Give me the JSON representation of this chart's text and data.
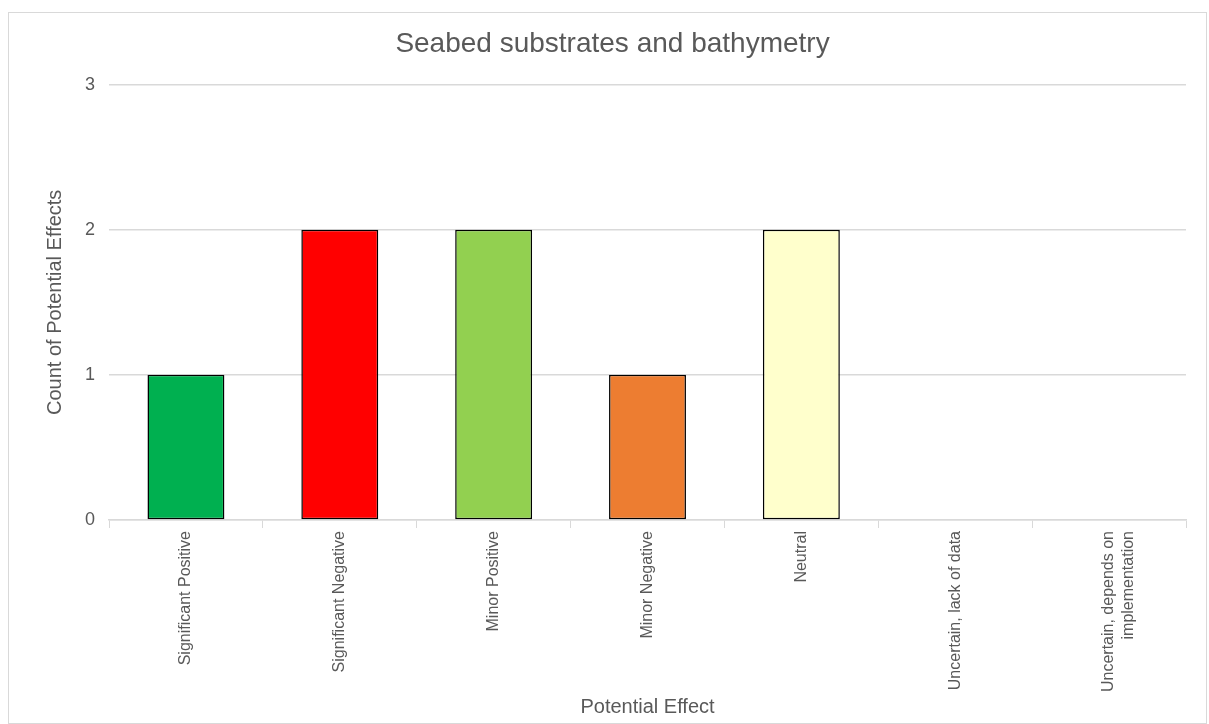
{
  "chart_data": {
    "type": "bar",
    "title": "Seabed substrates and bathymetry",
    "xlabel": "Potential Effect",
    "ylabel": "Count of Potential Effects",
    "categories": [
      "Significant Positive",
      "Significant Negative",
      "Minor Positive",
      "Minor Negative",
      "Neutral",
      "Uncertain, lack of data",
      "Uncertain, depends on implementation"
    ],
    "values": [
      1,
      2,
      2,
      1,
      2,
      0,
      0
    ],
    "colors": [
      "#00b050",
      "#ff0000",
      "#92d050",
      "#ed7d31",
      "#ffffcc",
      "#ffffff",
      "#ffffff"
    ],
    "ylim": [
      0,
      3
    ],
    "yticks": [
      0,
      1,
      2,
      3
    ],
    "grid": "y",
    "legend": false
  }
}
